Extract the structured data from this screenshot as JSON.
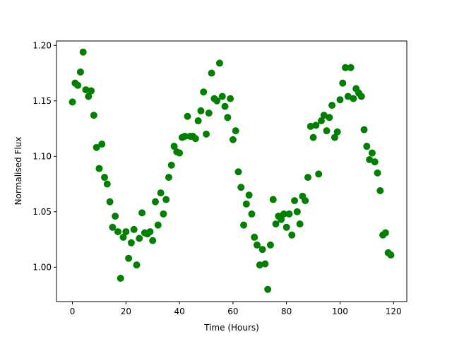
{
  "chart_data": {
    "type": "scatter",
    "x_label": "Time (Hours)",
    "y_label": "Normalised Flux",
    "color": "#008000",
    "x": [
      0,
      1,
      2,
      3,
      4,
      5,
      6,
      7,
      8,
      9,
      10,
      11,
      12,
      13,
      14,
      15,
      16,
      17,
      18,
      19,
      20,
      21,
      22,
      23,
      24,
      25,
      26,
      27,
      28,
      29,
      30,
      31,
      32,
      33,
      34,
      35,
      36,
      37,
      38,
      39,
      40,
      41,
      42,
      43,
      44,
      45,
      46,
      47,
      48,
      49,
      50,
      51,
      52,
      53,
      54,
      55,
      56,
      57,
      58,
      59,
      60,
      61,
      62,
      63,
      64,
      65,
      66,
      67,
      68,
      69,
      70,
      71,
      72,
      73,
      74,
      75,
      76,
      77,
      78,
      79,
      80,
      81,
      82,
      83,
      84,
      85,
      86,
      87,
      88,
      89,
      90,
      91,
      92,
      93,
      94,
      95,
      96,
      97,
      98,
      99,
      100,
      101,
      102,
      103,
      104,
      105,
      106,
      107,
      108,
      109,
      110,
      111,
      112,
      113,
      114,
      115,
      116,
      117,
      118,
      119
    ],
    "values": [
      1.149,
      1.166,
      1.164,
      1.176,
      1.194,
      1.16,
      1.154,
      1.159,
      1.137,
      1.108,
      1.089,
      1.111,
      1.081,
      1.075,
      1.059,
      1.036,
      1.046,
      1.032,
      0.99,
      1.027,
      1.032,
      1.008,
      1.022,
      1.034,
      1.002,
      1.026,
      1.049,
      1.031,
      1.03,
      1.032,
      1.024,
      1.059,
      1.038,
      1.067,
      1.048,
      1.061,
      1.081,
      1.092,
      1.109,
      1.104,
      1.103,
      1.117,
      1.118,
      1.136,
      1.118,
      1.118,
      1.116,
      1.132,
      1.141,
      1.158,
      1.12,
      1.139,
      1.175,
      1.152,
      1.15,
      1.184,
      1.154,
      1.145,
      1.135,
      1.152,
      1.115,
      1.123,
      1.086,
      1.072,
      1.038,
      1.057,
      1.065,
      1.048,
      1.027,
      1.02,
      1.002,
      1.016,
      1.003,
      0.98,
      1.02,
      1.061,
      1.039,
      1.046,
      1.043,
      1.048,
      1.036,
      1.048,
      1.029,
      1.06,
      1.05,
      1.039,
      1.064,
      1.06,
      1.081,
      1.127,
      1.117,
      1.128,
      1.084,
      1.132,
      1.137,
      1.123,
      1.135,
      1.146,
      1.117,
      1.122,
      1.151,
      1.166,
      1.18,
      1.154,
      1.18,
      1.152,
      1.161,
      1.157,
      1.154,
      1.124,
      1.109,
      1.097,
      1.103,
      1.095,
      1.085,
      1.069,
      1.029,
      1.031,
      1.013,
      1.011
    ],
    "xlim": [
      -5.95,
      124.95
    ],
    "xticks": [
      0,
      20,
      40,
      60,
      80,
      100,
      120
    ],
    "ylim": [
      0.969,
      1.204
    ],
    "yticks": [
      {
        "value": 1,
        "label": "1.00"
      },
      1.05,
      {
        "value": 1.1,
        "label": "1.10"
      },
      1.15,
      {
        "value": 1.2,
        "label": "1.20"
      }
    ]
  }
}
